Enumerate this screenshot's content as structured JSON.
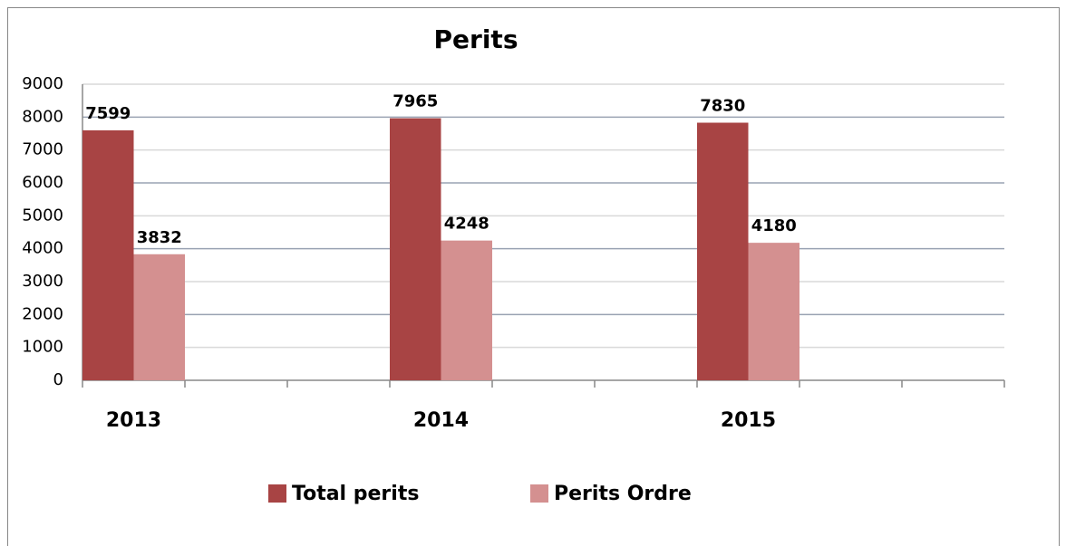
{
  "chart_data": {
    "type": "bar",
    "title": "Perits",
    "categories": [
      "2013",
      null,
      null,
      "2014",
      null,
      null,
      "2015",
      null,
      null
    ],
    "series": [
      {
        "name": "Total perits",
        "color": "#a84444",
        "values": [
          7599,
          null,
          null,
          7965,
          null,
          null,
          7830,
          null,
          null
        ]
      },
      {
        "name": "Perits Ordre",
        "color": "#d49090",
        "values": [
          3832,
          null,
          null,
          4248,
          null,
          null,
          4180,
          null,
          null
        ]
      }
    ],
    "ylim": [
      0,
      9000
    ],
    "yticks": [
      0,
      1000,
      2000,
      3000,
      4000,
      5000,
      6000,
      7000,
      8000,
      9000
    ],
    "grid": true,
    "legend": "bottom"
  }
}
